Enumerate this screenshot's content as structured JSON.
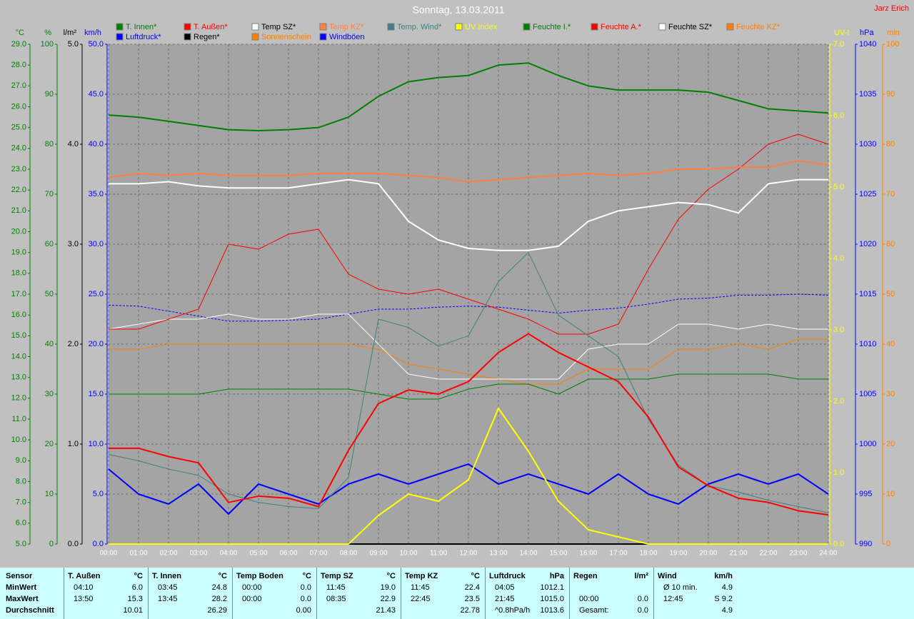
{
  "chart_data": {
    "type": "line",
    "title": "Sonntag, 13.03.2011",
    "author": "Jarz Erich",
    "categories": [
      "00:00",
      "01:00",
      "02:00",
      "03:00",
      "04:00",
      "05:00",
      "06:00",
      "07:00",
      "08:00",
      "09:00",
      "10:00",
      "11:00",
      "12:00",
      "13:00",
      "14:00",
      "15:00",
      "16:00",
      "17:00",
      "18:00",
      "19:00",
      "20:00",
      "21:00",
      "22:00",
      "23:00",
      "24:00"
    ],
    "grid": true,
    "axes": [
      {
        "label": "°C",
        "color": "#008000",
        "side": "left",
        "lim": [
          5,
          29
        ],
        "ticks": [
          {
            "value": 5,
            "label": "5.0"
          },
          {
            "value": 6,
            "label": "6.0"
          },
          {
            "value": 7,
            "label": "7.0"
          },
          {
            "value": 8,
            "label": "8.0"
          },
          {
            "value": 9,
            "label": "9.0"
          },
          {
            "value": 10,
            "label": "10.0"
          },
          {
            "value": 11,
            "label": "11.0"
          },
          {
            "value": 12,
            "label": "12.0"
          },
          {
            "value": 13,
            "label": "13.0"
          },
          {
            "value": 14,
            "label": "14.0"
          },
          {
            "value": 15,
            "label": "15.0"
          },
          {
            "value": 16,
            "label": "16.0"
          },
          {
            "value": 17,
            "label": "17.0"
          },
          {
            "value": 18,
            "label": "18.0"
          },
          {
            "value": 19,
            "label": "19.0"
          },
          {
            "value": 20,
            "label": "20.0"
          },
          {
            "value": 21,
            "label": "21.0"
          },
          {
            "value": 22,
            "label": "22.0"
          },
          {
            "value": 23,
            "label": "23.0"
          },
          {
            "value": 24,
            "label": "24.0"
          },
          {
            "value": 25,
            "label": "25.0"
          },
          {
            "value": 26,
            "label": "26.0"
          },
          {
            "value": 27,
            "label": "27.0"
          },
          {
            "value": 28,
            "label": "28.0"
          },
          {
            "value": 29,
            "label": "29.0"
          }
        ]
      },
      {
        "label": "%",
        "color": "#008000",
        "side": "left",
        "grid": true,
        "lim": [
          0,
          100
        ],
        "ticks": [
          0,
          10,
          20,
          30,
          40,
          50,
          60,
          70,
          80,
          90,
          100
        ]
      },
      {
        "label": "l/m²",
        "color": "#000000",
        "side": "left",
        "lim": [
          0,
          5
        ],
        "ticks": [
          {
            "value": 0,
            "label": "0.0"
          },
          {
            "value": 1,
            "label": "1.0"
          },
          {
            "value": 2,
            "label": "2.0"
          },
          {
            "value": 3,
            "label": "3.0"
          },
          {
            "value": 4,
            "label": "4.0"
          },
          {
            "value": 5,
            "label": "5.0"
          }
        ]
      },
      {
        "label": "km/h",
        "color": "#0000ff",
        "side": "left",
        "lim": [
          0,
          50
        ],
        "ticks": [
          {
            "value": 0,
            "label": "0.0"
          },
          {
            "value": 5,
            "label": "5.0"
          },
          {
            "value": 10,
            "label": "10.0"
          },
          {
            "value": 15,
            "label": "15.0"
          },
          {
            "value": 20,
            "label": "20.0"
          },
          {
            "value": 25,
            "label": "25.0"
          },
          {
            "value": 30,
            "label": "30.0"
          },
          {
            "value": 35,
            "label": "35.0"
          },
          {
            "value": 40,
            "label": "40.0"
          },
          {
            "value": 45,
            "label": "45.0"
          },
          {
            "value": 50,
            "label": "50.0"
          }
        ]
      },
      {
        "label": "UV-I",
        "color": "#ffff00",
        "side": "right",
        "lim": [
          0,
          7
        ],
        "ticks": [
          {
            "value": 0,
            "label": "0.0"
          },
          {
            "value": 1,
            "label": "1.0"
          },
          {
            "value": 2,
            "label": "2.0"
          },
          {
            "value": 3,
            "label": "3.0"
          },
          {
            "value": 4,
            "label": "4.0"
          },
          {
            "value": 5,
            "label": "5.0"
          },
          {
            "value": 6,
            "label": "6.0"
          },
          {
            "value": 7,
            "label": "7.0"
          }
        ]
      },
      {
        "label": "hPa",
        "color": "#0000ff",
        "side": "right",
        "lim": [
          990,
          1040
        ],
        "ticks": [
          990,
          995,
          1000,
          1005,
          1010,
          1015,
          1020,
          1025,
          1030,
          1035,
          1040
        ]
      },
      {
        "label": "min",
        "color": "#ff8000",
        "side": "right",
        "lim": [
          0,
          100
        ],
        "ticks": [
          0,
          10,
          20,
          30,
          40,
          50,
          60,
          70,
          80,
          90,
          100
        ]
      }
    ],
    "series": [
      {
        "name": "T. Innen*",
        "color": "#008000",
        "width": 2,
        "axis": 0,
        "values": [
          25.6,
          25.5,
          25.3,
          25.1,
          24.9,
          24.85,
          24.9,
          25.0,
          25.5,
          26.5,
          27.2,
          27.4,
          27.5,
          28.0,
          28.1,
          27.5,
          27.0,
          26.8,
          26.8,
          26.8,
          26.7,
          26.3,
          25.9,
          25.8,
          25.7
        ]
      },
      {
        "name": "T. Außen*",
        "color": "#ff0000",
        "width": 2,
        "axis": 0,
        "values": [
          9.6,
          9.6,
          9.2,
          8.9,
          7.0,
          7.3,
          7.2,
          6.8,
          9.5,
          11.75,
          12.4,
          12.2,
          12.8,
          14.2,
          15.1,
          14.2,
          13.5,
          12.8,
          11.1,
          8.7,
          7.8,
          7.2,
          7.0,
          6.6,
          6.4
        ]
      },
      {
        "name": "Temp SZ*",
        "color": "#ffffff",
        "width": 2,
        "axis": 0,
        "values": [
          22.3,
          22.3,
          22.4,
          22.2,
          22.1,
          22.1,
          22.1,
          22.3,
          22.5,
          22.3,
          20.5,
          19.6,
          19.2,
          19.1,
          19.1,
          19.3,
          20.5,
          21.0,
          21.2,
          21.4,
          21.3,
          20.9,
          22.3,
          22.5,
          22.5
        ]
      },
      {
        "name": "Temp KZ*",
        "color": "#ff8040",
        "width": 2,
        "axis": 0,
        "values": [
          22.6,
          22.8,
          22.7,
          22.8,
          22.7,
          22.7,
          22.7,
          22.8,
          22.8,
          22.8,
          22.7,
          22.6,
          22.4,
          22.5,
          22.6,
          22.7,
          22.8,
          22.7,
          22.8,
          23.0,
          23.0,
          23.1,
          23.1,
          23.4,
          23.2
        ]
      },
      {
        "name": "Temp. Wind*",
        "color": "#408080",
        "width": 1,
        "axis": 0,
        "values": [
          9.3,
          9.0,
          8.6,
          8.3,
          7.4,
          7.0,
          6.8,
          6.7,
          8.2,
          15.8,
          15.4,
          14.5,
          15.0,
          17.6,
          19.0,
          16.0,
          15.0,
          14.0,
          11.0,
          8.8,
          7.8,
          7.5,
          7.1,
          6.8,
          6.5
        ]
      },
      {
        "name": "UV Index",
        "color": "#ffff00",
        "width": 2,
        "axis": 4,
        "values": [
          0,
          0,
          0,
          0,
          0,
          0,
          0,
          0,
          0,
          0.4,
          0.7,
          0.6,
          0.9,
          1.9,
          1.3,
          0.6,
          0.2,
          0.1,
          0,
          0,
          0,
          0,
          0,
          0,
          0
        ]
      },
      {
        "name": "Feuchte I.*",
        "color": "#008000",
        "width": 1,
        "axis": 1,
        "values": [
          30,
          30,
          30,
          30,
          31,
          31,
          31,
          31,
          31,
          30,
          29,
          29,
          31,
          32,
          32,
          30,
          33,
          33,
          33,
          34,
          34,
          34,
          34,
          33,
          33
        ]
      },
      {
        "name": "Feuchte A.*",
        "color": "#ff0000",
        "width": 1,
        "axis": 1,
        "values": [
          43,
          43,
          45,
          47,
          60,
          59,
          62,
          63,
          54,
          51,
          50,
          51,
          49,
          47,
          45,
          42,
          42,
          44,
          55,
          65,
          71,
          75,
          80,
          82,
          80
        ]
      },
      {
        "name": "Feuchte SZ*",
        "color": "#ffffff",
        "width": 1,
        "axis": 1,
        "values": [
          43,
          44,
          45,
          45,
          46,
          45,
          45,
          46,
          46,
          40,
          34,
          33,
          33,
          33,
          33,
          33,
          39,
          40,
          40,
          44,
          44,
          43,
          44,
          43,
          43
        ]
      },
      {
        "name": "Feuchte KZ*",
        "color": "#ff8000",
        "width": 1,
        "axis": 1,
        "values": [
          39,
          39,
          40,
          40,
          40,
          40,
          40,
          40,
          40,
          39,
          36,
          35,
          34,
          33,
          32,
          32,
          35,
          35,
          35,
          39,
          39,
          40,
          39,
          41,
          41
        ]
      },
      {
        "name": "Luftdruck*",
        "color": "#0000ff",
        "width": 1,
        "dashed": true,
        "axis": 5,
        "values": [
          1013.9,
          1013.8,
          1013.3,
          1012.8,
          1012.3,
          1012.3,
          1012.4,
          1012.5,
          1013.0,
          1013.5,
          1013.5,
          1013.7,
          1013.8,
          1013.7,
          1013.4,
          1013.1,
          1013.4,
          1013.6,
          1014.0,
          1014.5,
          1014.6,
          1014.9,
          1014.9,
          1015.0,
          1014.9
        ]
      },
      {
        "name": "Regen*",
        "color": "#000000",
        "width": 2,
        "axis": 2,
        "values": [
          0,
          0,
          0,
          0,
          0,
          0,
          0,
          0,
          0,
          0,
          0,
          0,
          0,
          0,
          0,
          0,
          0,
          0,
          0,
          0,
          0,
          0,
          0,
          0,
          0
        ]
      },
      {
        "name": "Sonnenschein",
        "color": "#ff8000",
        "width": 1,
        "axis": 6,
        "values": [
          0,
          0,
          0,
          0,
          0,
          0,
          0,
          0,
          0,
          0,
          0,
          0,
          0,
          0,
          0,
          0,
          0,
          0,
          0,
          0,
          0,
          0,
          0,
          0,
          0
        ]
      },
      {
        "name": "Windböen",
        "color": "#0000ff",
        "width": 2,
        "axis": 3,
        "values": [
          7.5,
          5,
          4,
          6,
          3,
          6,
          5,
          4,
          6,
          7,
          6,
          7,
          8,
          6,
          7,
          6,
          5,
          7,
          5,
          4,
          6,
          7,
          6,
          7,
          5
        ]
      }
    ]
  },
  "table": {
    "header": "Sensor",
    "row_labels": [
      "MinWert",
      "MaxWert",
      "Durchschnitt"
    ],
    "columns": [
      {
        "name": "T. Außen",
        "unit": "°C",
        "rows": [
          {
            "time": "04:10",
            "value": "6.0"
          },
          {
            "time": "13:50",
            "value": "15.3"
          },
          {
            "value": "10.01"
          }
        ]
      },
      {
        "name": "T. Innen",
        "unit": "°C",
        "rows": [
          {
            "time": "03:45",
            "value": "24.8"
          },
          {
            "time": "13:45",
            "value": "28.2"
          },
          {
            "value": "26.29"
          }
        ]
      },
      {
        "name": "Temp Boden",
        "unit": "°C",
        "rows": [
          {
            "time": "00:00",
            "value": "0.0"
          },
          {
            "time": "00:00",
            "value": "0.0"
          },
          {
            "value": "0.00"
          }
        ]
      },
      {
        "name": "Temp SZ",
        "unit": "°C",
        "rows": [
          {
            "time": "11:45",
            "value": "19.0"
          },
          {
            "time": "08:35",
            "value": "22.9"
          },
          {
            "value": "21.43"
          }
        ]
      },
      {
        "name": "Temp KZ",
        "unit": "°C",
        "rows": [
          {
            "time": "11:45",
            "value": "22.4"
          },
          {
            "time": "22:45",
            "value": "23.5"
          },
          {
            "value": "22.78"
          }
        ]
      },
      {
        "name": "Luftdruck",
        "unit": "hPa",
        "rows": [
          {
            "time": "04:05",
            "value": "1012.1"
          },
          {
            "time": "21:45",
            "value": "1015.0"
          },
          {
            "time": "^0.8hPa/h",
            "value": "1013.6"
          }
        ]
      },
      {
        "name": "Regen",
        "unit": "l/m²",
        "rows": [
          null,
          {
            "time": "00:00",
            "value": "0.0"
          },
          {
            "time": "Gesamt:",
            "value": "0.0"
          }
        ]
      },
      {
        "name": "Wind",
        "unit": "km/h",
        "rows": [
          {
            "time": "Ø 10 min.",
            "value": "4.9"
          },
          {
            "time": "12:45",
            "value": "S 9.2"
          },
          {
            "value": "4.9"
          }
        ]
      }
    ]
  }
}
